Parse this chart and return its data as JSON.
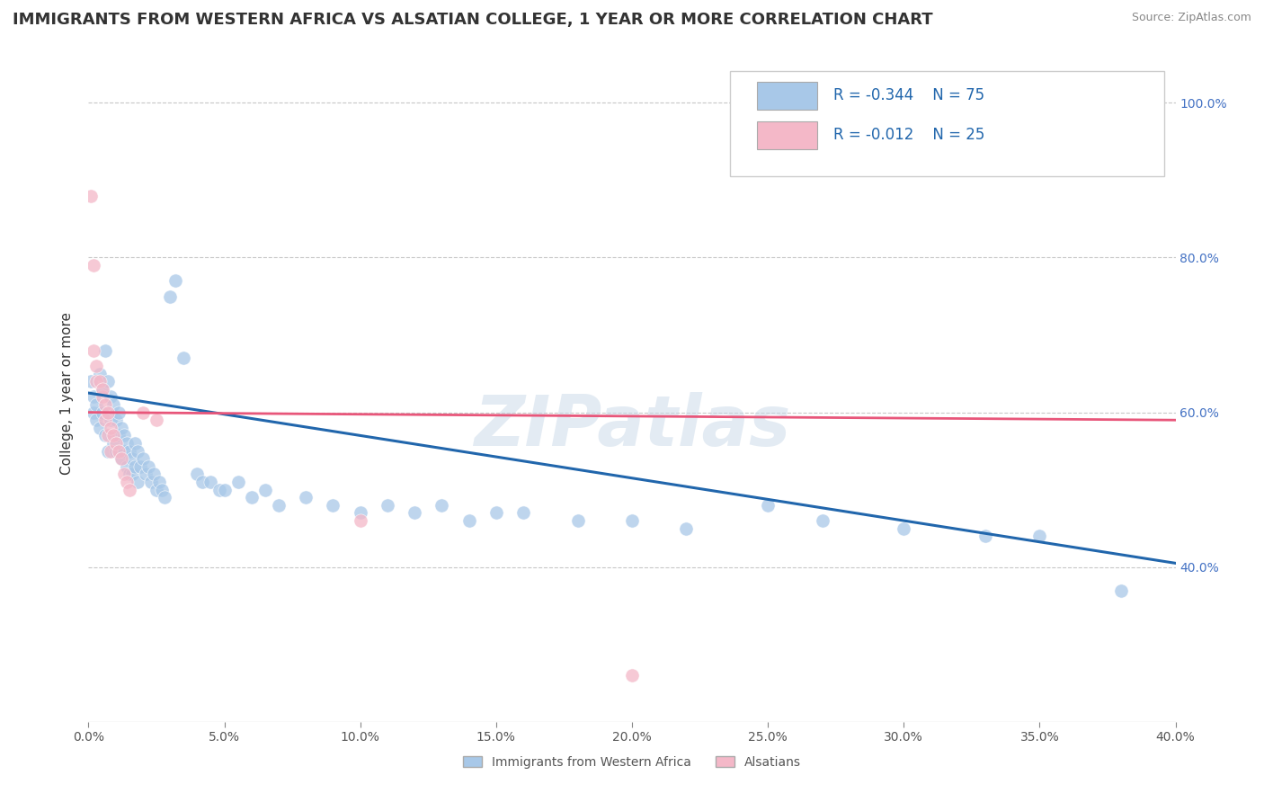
{
  "title": "IMMIGRANTS FROM WESTERN AFRICA VS ALSATIAN COLLEGE, 1 YEAR OR MORE CORRELATION CHART",
  "source": "Source: ZipAtlas.com",
  "ylabel": "College, 1 year or more",
  "legend_labels": [
    "Immigrants from Western Africa",
    "Alsatians"
  ],
  "blue_R": -0.344,
  "blue_N": 75,
  "pink_R": -0.012,
  "pink_N": 25,
  "xlim": [
    0.0,
    0.4
  ],
  "ylim": [
    0.2,
    1.05
  ],
  "blue_color": "#a8c8e8",
  "pink_color": "#f4b8c8",
  "blue_line_color": "#2166ac",
  "pink_line_color": "#e8567a",
  "grid_color": "#c8c8c8",
  "watermark": "ZIPatlas",
  "blue_scatter": [
    [
      0.001,
      0.64
    ],
    [
      0.002,
      0.62
    ],
    [
      0.002,
      0.6
    ],
    [
      0.003,
      0.61
    ],
    [
      0.003,
      0.59
    ],
    [
      0.004,
      0.65
    ],
    [
      0.004,
      0.58
    ],
    [
      0.005,
      0.63
    ],
    [
      0.005,
      0.6
    ],
    [
      0.006,
      0.68
    ],
    [
      0.006,
      0.57
    ],
    [
      0.007,
      0.64
    ],
    [
      0.007,
      0.55
    ],
    [
      0.008,
      0.62
    ],
    [
      0.008,
      0.59
    ],
    [
      0.009,
      0.61
    ],
    [
      0.009,
      0.56
    ],
    [
      0.01,
      0.59
    ],
    [
      0.01,
      0.55
    ],
    [
      0.011,
      0.6
    ],
    [
      0.011,
      0.57
    ],
    [
      0.012,
      0.58
    ],
    [
      0.012,
      0.54
    ],
    [
      0.013,
      0.57
    ],
    [
      0.013,
      0.55
    ],
    [
      0.014,
      0.56
    ],
    [
      0.014,
      0.53
    ],
    [
      0.015,
      0.55
    ],
    [
      0.015,
      0.52
    ],
    [
      0.016,
      0.54
    ],
    [
      0.016,
      0.52
    ],
    [
      0.017,
      0.56
    ],
    [
      0.017,
      0.53
    ],
    [
      0.018,
      0.55
    ],
    [
      0.018,
      0.51
    ],
    [
      0.019,
      0.53
    ],
    [
      0.02,
      0.54
    ],
    [
      0.021,
      0.52
    ],
    [
      0.022,
      0.53
    ],
    [
      0.023,
      0.51
    ],
    [
      0.024,
      0.52
    ],
    [
      0.025,
      0.5
    ],
    [
      0.026,
      0.51
    ],
    [
      0.027,
      0.5
    ],
    [
      0.028,
      0.49
    ],
    [
      0.03,
      0.75
    ],
    [
      0.032,
      0.77
    ],
    [
      0.035,
      0.67
    ],
    [
      0.04,
      0.52
    ],
    [
      0.042,
      0.51
    ],
    [
      0.045,
      0.51
    ],
    [
      0.048,
      0.5
    ],
    [
      0.05,
      0.5
    ],
    [
      0.055,
      0.51
    ],
    [
      0.06,
      0.49
    ],
    [
      0.065,
      0.5
    ],
    [
      0.07,
      0.48
    ],
    [
      0.08,
      0.49
    ],
    [
      0.09,
      0.48
    ],
    [
      0.1,
      0.47
    ],
    [
      0.11,
      0.48
    ],
    [
      0.12,
      0.47
    ],
    [
      0.13,
      0.48
    ],
    [
      0.14,
      0.46
    ],
    [
      0.15,
      0.47
    ],
    [
      0.16,
      0.47
    ],
    [
      0.18,
      0.46
    ],
    [
      0.2,
      0.46
    ],
    [
      0.22,
      0.45
    ],
    [
      0.25,
      0.48
    ],
    [
      0.27,
      0.46
    ],
    [
      0.3,
      0.45
    ],
    [
      0.33,
      0.44
    ],
    [
      0.35,
      0.44
    ],
    [
      0.38,
      0.37
    ]
  ],
  "pink_scatter": [
    [
      0.001,
      0.88
    ],
    [
      0.002,
      0.79
    ],
    [
      0.002,
      0.68
    ],
    [
      0.003,
      0.66
    ],
    [
      0.003,
      0.64
    ],
    [
      0.004,
      0.64
    ],
    [
      0.005,
      0.62
    ],
    [
      0.005,
      0.63
    ],
    [
      0.006,
      0.61
    ],
    [
      0.006,
      0.59
    ],
    [
      0.007,
      0.6
    ],
    [
      0.007,
      0.57
    ],
    [
      0.008,
      0.58
    ],
    [
      0.008,
      0.55
    ],
    [
      0.009,
      0.57
    ],
    [
      0.01,
      0.56
    ],
    [
      0.011,
      0.55
    ],
    [
      0.012,
      0.54
    ],
    [
      0.013,
      0.52
    ],
    [
      0.014,
      0.51
    ],
    [
      0.015,
      0.5
    ],
    [
      0.02,
      0.6
    ],
    [
      0.025,
      0.59
    ],
    [
      0.1,
      0.46
    ],
    [
      0.2,
      0.26
    ]
  ]
}
